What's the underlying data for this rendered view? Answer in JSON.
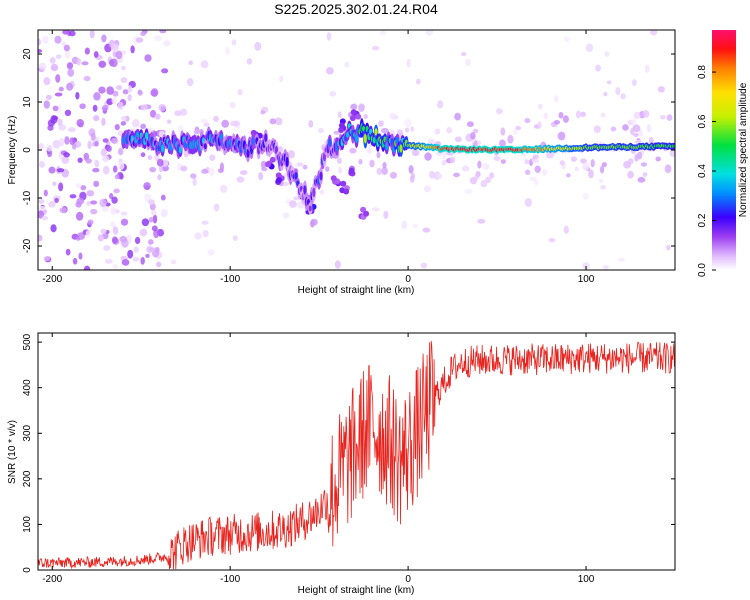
{
  "title": "S225.2025.302.01.24.R04",
  "chart_data": [
    {
      "type": "heatmap",
      "title": "",
      "xlabel": "Height of straight line (km)",
      "ylabel": "Frequency (Hz)",
      "xlim": [
        -208,
        150
      ],
      "ylim": [
        -25,
        25
      ],
      "xticks": [
        -200,
        -100,
        0,
        100
      ],
      "yticks": [
        -20,
        -10,
        0,
        10,
        20
      ],
      "colorbar": {
        "label": "Normalized spectral amplitude",
        "range": [
          0,
          0.97
        ],
        "ticks": [
          "0.0",
          "0.2",
          "0.4",
          "0.6",
          "0.8"
        ],
        "tick_values": [
          0,
          0.2,
          0.4,
          0.6,
          0.8
        ]
      },
      "ridge": [
        {
          "x": -150,
          "y": 2,
          "amp": 0.35
        },
        {
          "x": -130,
          "y": 1,
          "amp": 0.3
        },
        {
          "x": -110,
          "y": 2,
          "amp": 0.3
        },
        {
          "x": -90,
          "y": 0.5,
          "amp": 0.25
        },
        {
          "x": -80,
          "y": 1.5,
          "amp": 0.2
        },
        {
          "x": -70,
          "y": -2,
          "amp": 0.2
        },
        {
          "x": -55,
          "y": -11,
          "amp": 0.2
        },
        {
          "x": -45,
          "y": 0,
          "amp": 0.25
        },
        {
          "x": -33,
          "y": 4,
          "amp": 0.35
        },
        {
          "x": -20,
          "y": 3,
          "amp": 0.55
        },
        {
          "x": -10,
          "y": 1,
          "amp": 0.45
        },
        {
          "x": 5,
          "y": 0.8,
          "amp": 0.7
        },
        {
          "x": 20,
          "y": 0.2,
          "amp": 0.92
        },
        {
          "x": 60,
          "y": 0,
          "amp": 0.95
        },
        {
          "x": 100,
          "y": 0.5,
          "amp": 0.6
        },
        {
          "x": 150,
          "y": 0.8,
          "amp": 0.55
        }
      ]
    },
    {
      "type": "line",
      "title": "",
      "xlabel": "Height of straight line (km)",
      "ylabel": "SNR (10 * v/v)",
      "xlim": [
        -208,
        150
      ],
      "ylim": [
        0,
        520
      ],
      "xticks": [
        -200,
        -100,
        0,
        100
      ],
      "yticks": [
        0,
        100,
        200,
        300,
        400,
        500
      ],
      "color": "#e8231e",
      "series": [
        {
          "name": "SNR",
          "x": [
            -208,
            -190,
            -170,
            -150,
            -135,
            -125,
            -110,
            -95,
            -80,
            -70,
            -60,
            -50,
            -40,
            -35,
            -30,
            -25,
            -20,
            -15,
            -10,
            -5,
            0,
            5,
            10,
            15,
            20,
            25,
            30,
            40,
            60,
            80,
            100,
            120,
            150
          ],
          "y": [
            15,
            16,
            18,
            22,
            30,
            60,
            75,
            80,
            85,
            90,
            105,
            130,
            190,
            230,
            260,
            300,
            320,
            300,
            280,
            240,
            260,
            300,
            340,
            380,
            410,
            440,
            455,
            460,
            462,
            462,
            465,
            465,
            465
          ]
        }
      ]
    }
  ]
}
